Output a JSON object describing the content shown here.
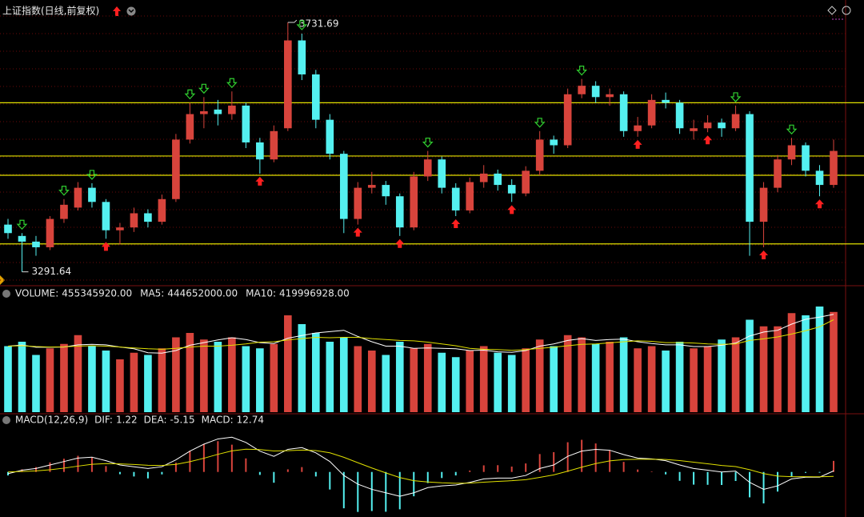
{
  "header": {
    "title": "上证指数(日线,前复权)"
  },
  "chart_data": [
    {
      "type": "candlestick",
      "candles": {
        "open": [
          3375,
          3355,
          3345,
          3335,
          3385,
          3405,
          3440,
          3415,
          3365,
          3370,
          3395,
          3380,
          3420,
          3525,
          3570,
          3578,
          3570,
          3585,
          3520,
          3490,
          3545,
          3700,
          3640,
          3560,
          3500,
          3385,
          3440,
          3445,
          3425,
          3370,
          3460,
          3490,
          3440,
          3400,
          3450,
          3465,
          3445,
          3430,
          3470,
          3525,
          3515,
          3605,
          3620,
          3600,
          3605,
          3540,
          3550,
          3595,
          3590,
          3540,
          3545,
          3555,
          3545,
          3570,
          3380,
          3440,
          3490,
          3515,
          3470,
          3445
        ],
        "high": [
          3385,
          3360,
          3355,
          3390,
          3420,
          3450,
          3448,
          3420,
          3378,
          3405,
          3402,
          3428,
          3535,
          3590,
          3600,
          3595,
          3610,
          3590,
          3528,
          3550,
          3731.69,
          3712,
          3648,
          3570,
          3505,
          3450,
          3468,
          3452,
          3430,
          3468,
          3505,
          3495,
          3448,
          3458,
          3480,
          3472,
          3455,
          3478,
          3540,
          3532,
          3615,
          3632,
          3628,
          3615,
          3610,
          3565,
          3605,
          3608,
          3595,
          3560,
          3568,
          3562,
          3585,
          3575,
          3450,
          3498,
          3528,
          3520,
          3480,
          3525
        ],
        "low": [
          3350,
          3291.64,
          3320,
          3330,
          3378,
          3400,
          3405,
          3350,
          3340,
          3362,
          3370,
          3375,
          3415,
          3518,
          3545,
          3550,
          3560,
          3510,
          3465,
          3485,
          3540,
          3630,
          3545,
          3490,
          3360,
          3375,
          3430,
          3410,
          3355,
          3365,
          3452,
          3430,
          3390,
          3395,
          3440,
          3435,
          3415,
          3425,
          3462,
          3500,
          3510,
          3598,
          3590,
          3585,
          3530,
          3530,
          3545,
          3580,
          3535,
          3525,
          3538,
          3530,
          3540,
          3320,
          3335,
          3432,
          3480,
          3460,
          3425,
          3440
        ],
        "close": [
          3360,
          3345,
          3335,
          3385,
          3410,
          3440,
          3415,
          3365,
          3370,
          3395,
          3380,
          3420,
          3525,
          3570,
          3575,
          3570,
          3585,
          3520,
          3490,
          3540,
          3700,
          3640,
          3560,
          3500,
          3385,
          3440,
          3445,
          3425,
          3370,
          3460,
          3490,
          3440,
          3400,
          3450,
          3465,
          3445,
          3430,
          3470,
          3525,
          3515,
          3605,
          3620,
          3600,
          3605,
          3540,
          3550,
          3595,
          3590,
          3545,
          3545,
          3555,
          3545,
          3570,
          3380,
          3440,
          3490,
          3515,
          3470,
          3445,
          3505
        ]
      },
      "ylim": [
        3270,
        3760
      ],
      "support_lines": [
        3590,
        3496,
        3462,
        3341
      ],
      "sell_signals": [
        1,
        4,
        6,
        13,
        14,
        16,
        21,
        30,
        38,
        41,
        52,
        56
      ],
      "buy_signals": [
        7,
        18,
        25,
        28,
        32,
        36,
        45,
        50,
        54,
        58
      ],
      "up_color": "#d8443c",
      "down_color": "#54f0f0",
      "line_color": "#e0e000",
      "sell_color": "#30d030",
      "buy_color": "#ff2020"
    },
    {
      "type": "bar",
      "label": "VOLUME:",
      "readout": "455345920.00",
      "values": [
        300000000.0,
        320000000.0,
        260000000.0,
        290000000.0,
        310000000.0,
        350000000.0,
        300000000.0,
        280000000.0,
        240000000.0,
        270000000.0,
        260000000.0,
        290000000.0,
        340000000.0,
        360000000.0,
        330000000.0,
        320000000.0,
        340000000.0,
        300000000.0,
        290000000.0,
        310000000.0,
        440000000.0,
        400000000.0,
        360000000.0,
        320000000.0,
        340000000.0,
        300000000.0,
        280000000.0,
        260000000.0,
        320000000.0,
        290000000.0,
        310000000.0,
        270000000.0,
        250000000.0,
        280000000.0,
        300000000.0,
        270000000.0,
        260000000.0,
        290000000.0,
        330000000.0,
        300000000.0,
        350000000.0,
        340000000.0,
        310000000.0,
        320000000.0,
        340000000.0,
        290000000.0,
        300000000.0,
        280000000.0,
        320000000.0,
        290000000.0,
        300000000.0,
        330000000.0,
        340000000.0,
        420000000.0,
        390000000.0,
        390000000.0,
        450000000.0,
        440000000.0,
        480000000.0,
        455345920
      ],
      "series": [
        {
          "name": "MA5:",
          "readout": "444652000.00",
          "color": "#ffffff",
          "values": [
            300000000.0,
            305000000.0,
            295000000.0,
            295000000.0,
            296000000.0,
            306000000.0,
            308000000.0,
            306000000.0,
            296000000.0,
            288000000.0,
            270000000.0,
            268000000.0,
            280000000.0,
            304000000.0,
            316000000.0,
            328000000.0,
            338000000.0,
            330000000.0,
            316000000.0,
            312000000.0,
            336000000.0,
            348000000.0,
            360000000.0,
            366000000.0,
            372000000.0,
            344000000.0,
            320000000.0,
            300000000.0,
            300000000.0,
            290000000.0,
            292000000.0,
            290000000.0,
            288000000.0,
            280000000.0,
            282000000.0,
            274000000.0,
            272000000.0,
            280000000.0,
            300000000.0,
            310000000.0,
            326000000.0,
            334000000.0,
            326000000.0,
            330000000.0,
            332000000.0,
            320000000.0,
            312000000.0,
            306000000.0,
            306000000.0,
            298000000.0,
            298000000.0,
            304000000.0,
            314000000.0,
            346000000.0,
            364000000.0,
            372000000.0,
            400000000.0,
            422000000.0,
            432000000.0,
            444652000.0
          ]
        },
        {
          "name": "MA10:",
          "readout": "419996928.00",
          "color": "#e0e000",
          "values": [
            300000000.0,
            302000000.0,
            298000000.0,
            296000000.0,
            297000000.0,
            300000000.0,
            302000000.0,
            300000000.0,
            296000000.0,
            292000000.0,
            288000000.0,
            286000000.0,
            290000000.0,
            296000000.0,
            300000000.0,
            300000000.0,
            304000000.0,
            310000000.0,
            318000000.0,
            320000000.0,
            328000000.0,
            334000000.0,
            340000000.0,
            338000000.0,
            340000000.0,
            340000000.0,
            334000000.0,
            330000000.0,
            326000000.0,
            324000000.0,
            318000000.0,
            310000000.0,
            302000000.0,
            290000000.0,
            286000000.0,
            284000000.0,
            281000000.0,
            284000000.0,
            290000000.0,
            295000000.0,
            302000000.0,
            308000000.0,
            310000000.0,
            315000000.0,
            320000000.0,
            324000000.0,
            322000000.0,
            316000000.0,
            316000000.0,
            314000000.0,
            310000000.0,
            308000000.0,
            310000000.0,
            326000000.0,
            333000000.0,
            342000000.0,
            355000000.0,
            370000000.0,
            388000000.0,
            419996928.0
          ]
        }
      ],
      "ylim": [
        0,
        520000000
      ]
    },
    {
      "type": "macd",
      "label": "MACD(12,26,9)",
      "series": [
        {
          "name": "DIF:",
          "color": "#ffffff",
          "values": [
            -2,
            2,
            4,
            8,
            12,
            16,
            17,
            13,
            8,
            6,
            4,
            6,
            14,
            24,
            32,
            38,
            40,
            34,
            24,
            18,
            26,
            28,
            22,
            12,
            -4,
            -14,
            -20,
            -24,
            -28,
            -24,
            -18,
            -16,
            -15,
            -12,
            -8,
            -7,
            -7,
            -4,
            4,
            8,
            18,
            24,
            26,
            25,
            20,
            16,
            15,
            13,
            8,
            4,
            2,
            0,
            1,
            -12,
            -20,
            -16,
            -8,
            -6,
            -6,
            1.22
          ]
        },
        {
          "name": "DEA:",
          "color": "#e0e000",
          "values": [
            0,
            0.5,
            1.2,
            2.5,
            4.4,
            6.7,
            8.8,
            9.6,
            9.3,
            8.6,
            7.7,
            7.4,
            8.7,
            11.8,
            15.8,
            20.3,
            24.3,
            26.2,
            25.7,
            24.2,
            24.5,
            25.2,
            24.6,
            22.1,
            16.9,
            10.7,
            4.6,
            -1.1,
            -6.5,
            -10,
            -11.6,
            -12.5,
            -13,
            -12.8,
            -11.8,
            -10.9,
            -10.1,
            -8.9,
            -6.3,
            -3.4,
            0.9,
            5.5,
            9.6,
            12.7,
            14.2,
            14.6,
            14.7,
            14.4,
            13.1,
            11.3,
            9.4,
            7.5,
            6.2,
            2.6,
            -1.9,
            -4.7,
            -5.4,
            -5.5,
            -5.6,
            -5.15
          ]
        }
      ],
      "histogram": {
        "name": "MACD:",
        "color": "#ff40ff",
        "up_color": "#d8443c",
        "down_color": "#54f0f0",
        "values": [
          -4,
          3,
          5.6,
          11,
          15.2,
          18.6,
          16.4,
          6.8,
          -2.6,
          -5.2,
          -7.4,
          -2.8,
          10.6,
          24.4,
          32.4,
          35.4,
          31.4,
          15.6,
          -3.4,
          -12.4,
          3,
          5.6,
          -5.2,
          -20.2,
          -41.8,
          -46,
          -45,
          -45.8,
          -43,
          -28,
          -12.8,
          -7,
          -4,
          1.6,
          7.6,
          7.8,
          6.2,
          9.8,
          20.6,
          22.8,
          34.2,
          37,
          32.8,
          24.6,
          11.6,
          2.8,
          0.6,
          -2.8,
          -10.2,
          -14.6,
          -14.8,
          -15,
          -10.4,
          -29.2,
          -36.2,
          -22.6,
          -5.2,
          -1,
          -0.8,
          12.74
        ]
      },
      "ylim": [
        -50,
        55
      ]
    }
  ]
}
